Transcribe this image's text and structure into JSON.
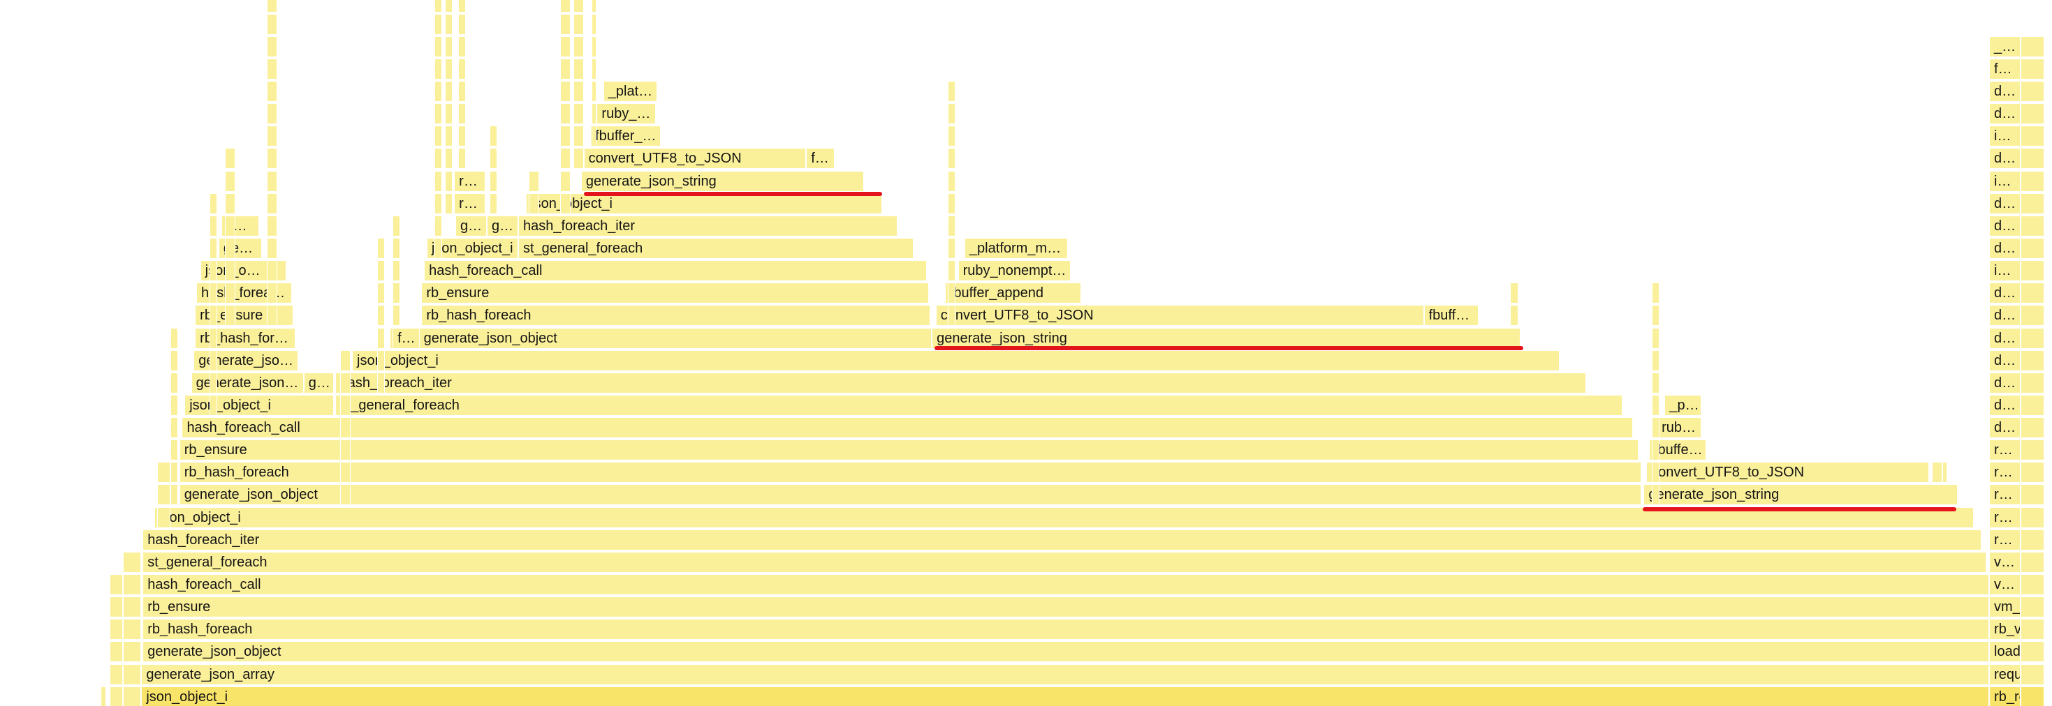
{
  "frame_fill": "#fbf09a",
  "root_fill": "#f9e46a",
  "highlight_color": "#e4141d",
  "labels": {
    "root": "json_object_i",
    "l1": "generate_json_array",
    "l2": "generate_json_object",
    "l3": "rb_hash_foreach",
    "l4": "rb_ensure",
    "l5": "hash_foreach_call",
    "l6": "st_general_foreach",
    "l7": "hash_foreach_iter",
    "l8": "json_object_i",
    "l9": "generate_json_object",
    "l10": "rb_hash_foreach",
    "l11": "rb_ensure",
    "l12": "hash_foreach_call",
    "l13": "json_object_i",
    "l14a": "generate_json…",
    "l14b": "g…",
    "l14c": "st_general_foreach",
    "l15a": "generate_jso…",
    "l15b": "json_object_i",
    "l15c": "hash_foreach_iter",
    "l16a": "rb_hash_for…",
    "l16b": "f…",
    "l16c": "g…",
    "l16d": "generate_json_object",
    "l17a": "rb_ensure",
    "l17b": "rb_hash_foreach",
    "l18a": "hash_forea…",
    "l18b": "rb_ensure",
    "l19a": "json_o…",
    "l19b": "hash_foreach_call",
    "l20a": "ge…",
    "l20b": "json_object_i",
    "l20c": "st_general_foreach",
    "l21a": "c…",
    "l21b": "g…",
    "l21c": "g…",
    "l21d": "hash_foreach_iter",
    "l22a": "r…",
    "l22b": "json_object_i",
    "l23a": "r…",
    "l23b": "generate_json_string",
    "l24a": "convert_UTF8_to_JSON",
    "l24b": "f…",
    "l25": "fbuffer_…",
    "l26": "ruby_…",
    "l27": "_plat…",
    "m1": "generate_json_string",
    "m2a": "convert_UTF8_to_JSON",
    "m2b": "fbuff…",
    "m3": "fbuffer_append",
    "m4": "ruby_nonempt…",
    "m5": "_platform_m…",
    "r1": "generate_json_string",
    "r2": "convert_UTF8_to_JSON",
    "r3": "fbuffe…",
    "r4": "rub…",
    "r5": "_p…",
    "side": [
      "rb_re…",
      "requir…",
      "load_…",
      "rb_v…",
      "vm_e…",
      "v…",
      "v…",
      "r…",
      "r…",
      "r…",
      "r…",
      "r…",
      "d…",
      "d…",
      "d…",
      "d…",
      "d…",
      "d…",
      "d…",
      "i…",
      "d…",
      "d…",
      "d…",
      "i…",
      "d…",
      "i…",
      "d…",
      "d…",
      "f…",
      "_…"
    ]
  }
}
